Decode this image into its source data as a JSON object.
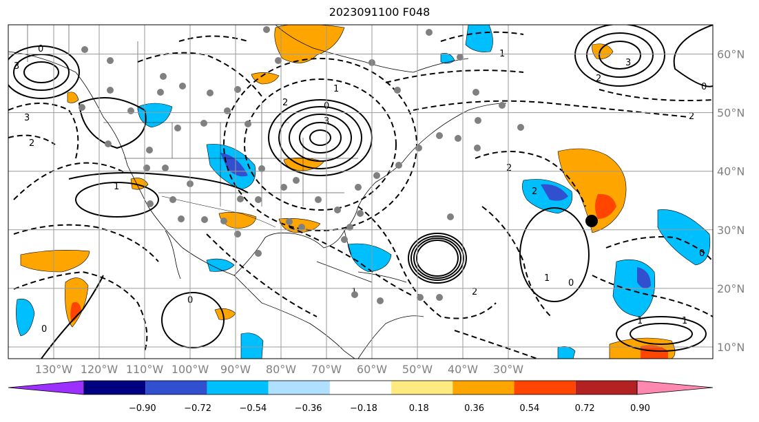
{
  "title": "2023091100 F048",
  "map": {
    "lon_range": [
      -140,
      15
    ],
    "lat_range": [
      8,
      65
    ],
    "grid": true,
    "lon_ticks": [
      {
        "lon": -130,
        "label": "130°W"
      },
      {
        "lon": -120,
        "label": "120°W"
      },
      {
        "lon": -110,
        "label": "110°W"
      },
      {
        "lon": -100,
        "label": "100°W"
      },
      {
        "lon": -90,
        "label": "90°W"
      },
      {
        "lon": -80,
        "label": "80°W"
      },
      {
        "lon": -70,
        "label": "70°W"
      },
      {
        "lon": -60,
        "label": "60°W"
      },
      {
        "lon": -50,
        "label": "50°W"
      },
      {
        "lon": -40,
        "label": "40°W"
      },
      {
        "lon": -30,
        "label": "30°W"
      }
    ],
    "lat_ticks": [
      {
        "lat": 10,
        "label": "10°N"
      },
      {
        "lat": 20,
        "label": "20°N"
      },
      {
        "lat": 30,
        "label": "30°N"
      },
      {
        "lat": 40,
        "label": "40°N"
      },
      {
        "lat": 50,
        "label": "50°N"
      },
      {
        "lat": 60,
        "label": "60°N"
      }
    ],
    "contour_labels": [
      "0",
      "1",
      "2",
      "3"
    ]
  },
  "colorbar": {
    "ticks": [
      "−0.90",
      "−0.72",
      "−0.54",
      "−0.36",
      "−0.18",
      "0.18",
      "0.36",
      "0.54",
      "0.72",
      "0.90"
    ],
    "colors": [
      "#9b30ff",
      "#000080",
      "#3050d0",
      "#00bfff",
      "#b0e0ff",
      "#ffffff",
      "#ffea80",
      "#ffa500",
      "#ff4500",
      "#b22222",
      "#ff88b0"
    ],
    "extend": "both"
  }
}
